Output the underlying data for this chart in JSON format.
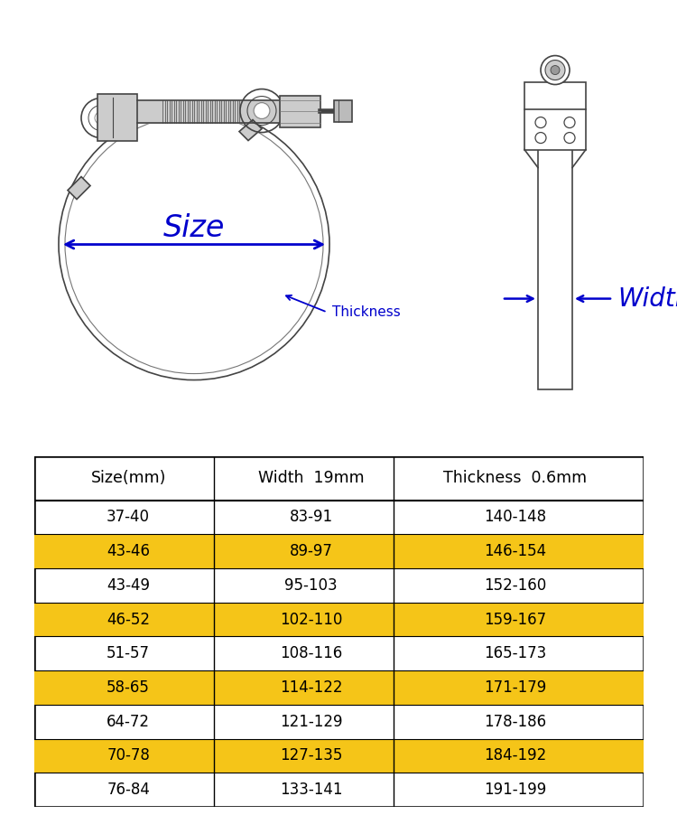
{
  "table_headers": [
    "Size(mm)",
    "Width  19mm",
    "Thickness  0.6mm"
  ],
  "table_rows": [
    [
      "37-40",
      "83-91",
      "140-148"
    ],
    [
      "43-46",
      "89-97",
      "146-154"
    ],
    [
      "43-49",
      "95-103",
      "152-160"
    ],
    [
      "46-52",
      "102-110",
      "159-167"
    ],
    [
      "51-57",
      "108-116",
      "165-173"
    ],
    [
      "58-65",
      "114-122",
      "171-179"
    ],
    [
      "64-72",
      "121-129",
      "178-186"
    ],
    [
      "70-78",
      "127-135",
      "184-192"
    ],
    [
      "76-84",
      "133-141",
      "191-199"
    ]
  ],
  "highlighted_rows": [
    1,
    3,
    5,
    7
  ],
  "highlight_color": "#F5C518",
  "bg_color": "#ffffff",
  "blue_color": "#0000CC"
}
